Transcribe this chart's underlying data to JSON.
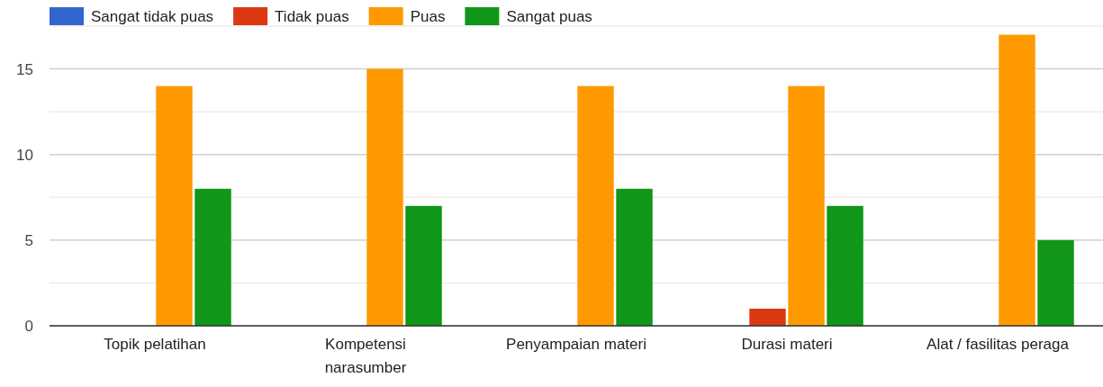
{
  "chart_data": {
    "type": "bar",
    "categories": [
      "Topik pelatihan",
      "Kompetensi narasumber",
      "Penyampaian materi",
      "Durasi materi",
      "Alat / fasilitas peraga"
    ],
    "series": [
      {
        "name": "Sangat tidak puas",
        "color": "#3366cc",
        "values": [
          0,
          0,
          0,
          0,
          0
        ]
      },
      {
        "name": "Tidak puas",
        "color": "#dc3912",
        "values": [
          0,
          0,
          0,
          1,
          0
        ]
      },
      {
        "name": "Puas",
        "color": "#ff9900",
        "values": [
          14,
          15,
          14,
          14,
          17
        ]
      },
      {
        "name": "Sangat puas",
        "color": "#109618",
        "values": [
          8,
          7,
          8,
          7,
          5
        ]
      }
    ],
    "ylim": [
      0,
      17.5
    ],
    "yticks": [
      0,
      {
        "value": 2.5,
        "label": null
      },
      5,
      {
        "value": 7.5,
        "label": null
      },
      10,
      {
        "value": 12.5,
        "label": null
      },
      15,
      {
        "value": 17.5,
        "label": null
      }
    ],
    "grid": "y",
    "legend": "top left"
  }
}
